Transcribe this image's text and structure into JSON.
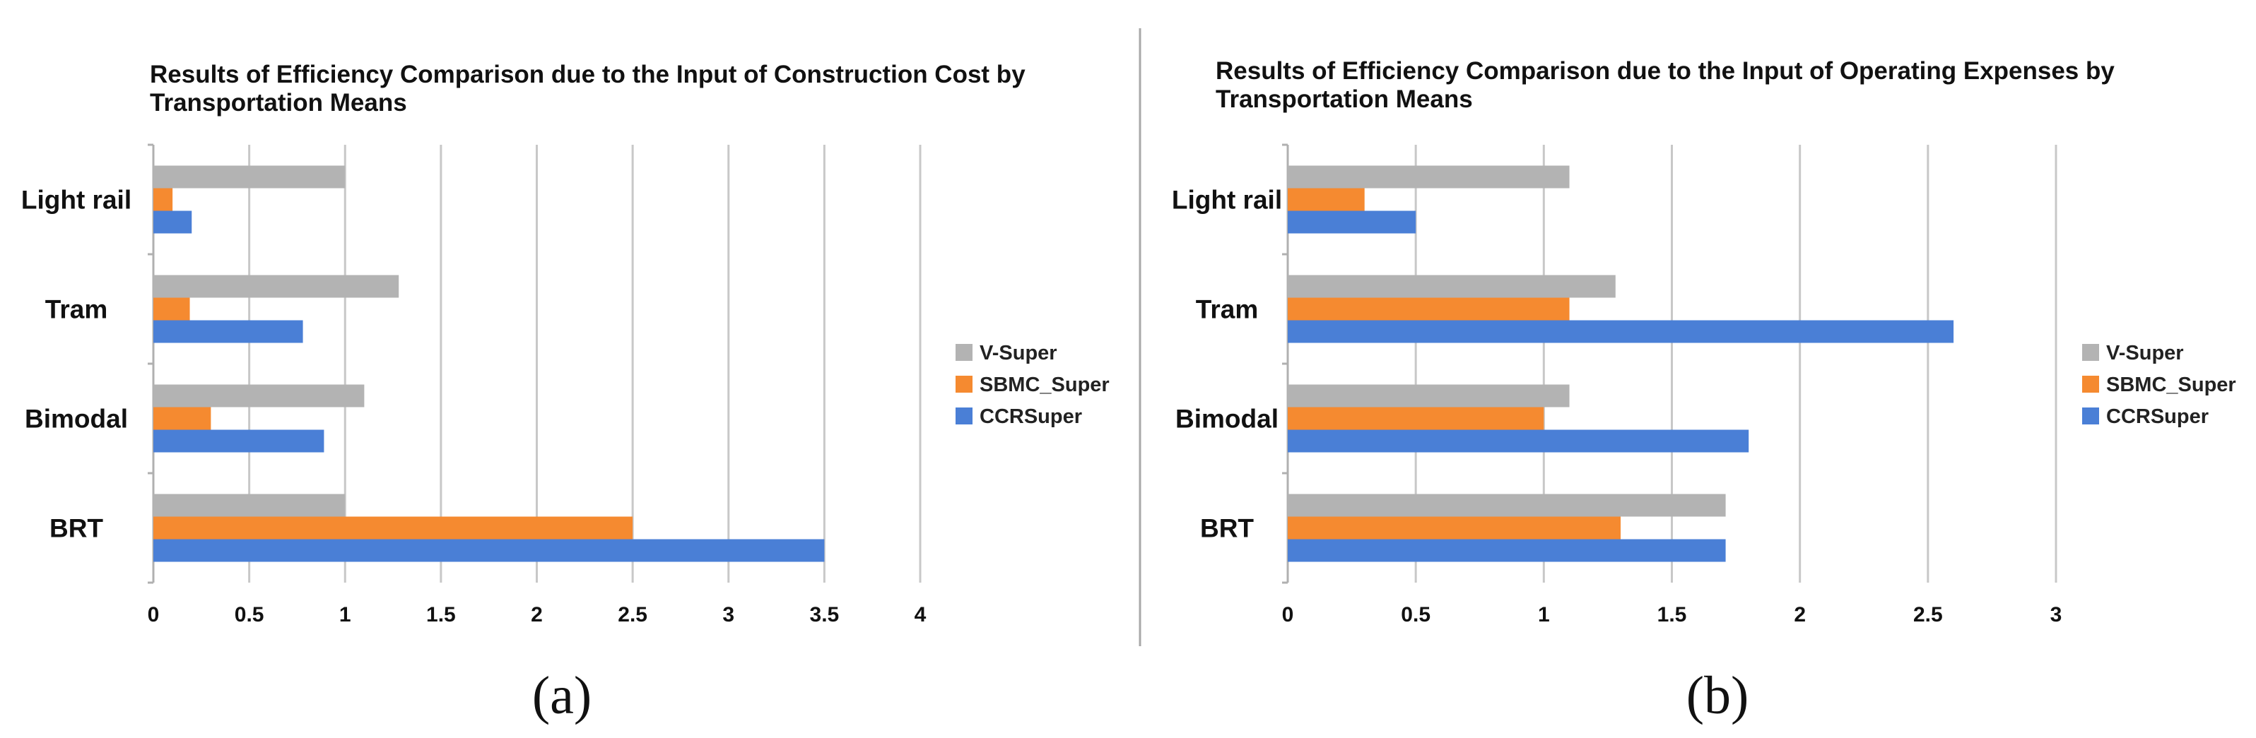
{
  "colors": {
    "V-Super": "#b3b3b3",
    "SBMC_Super": "#f58a30",
    "CCRSuper": "#4a7fd6",
    "grid": "#c8c8c8",
    "divider": "#a8a8a8"
  },
  "chart_data": [
    {
      "type": "bar",
      "orientation": "horizontal",
      "panel_label": "(a)",
      "title_lines": [
        "Results of Efficiency Comparison due to the Input of Construction Cost by",
        "Transportation Means"
      ],
      "categories": [
        "Light rail",
        "Tram",
        "Bimodal",
        "BRT"
      ],
      "series": [
        {
          "name": "V-Super",
          "values": [
            1.0,
            1.28,
            1.1,
            1.0
          ]
        },
        {
          "name": "SBMC_Super",
          "values": [
            0.1,
            0.19,
            0.3,
            2.5
          ]
        },
        {
          "name": "CCRSuper",
          "values": [
            0.2,
            0.78,
            0.89,
            3.5
          ]
        }
      ],
      "xlim": [
        0,
        4
      ],
      "xticks": [
        "0",
        "0.5",
        "1",
        "1.5",
        "2",
        "2.5",
        "3",
        "3.5",
        "4"
      ],
      "grid": true,
      "legend": [
        "V-Super",
        "SBMC_Super",
        "CCRSuper"
      ],
      "legend_position": "right"
    },
    {
      "type": "bar",
      "orientation": "horizontal",
      "panel_label": "(b)",
      "title_lines": [
        "Results of Efficiency Comparison due to the Input of Operating Expenses by",
        "Transportation Means"
      ],
      "categories": [
        "Light rail",
        "Tram",
        "Bimodal",
        "BRT"
      ],
      "series": [
        {
          "name": "V-Super",
          "values": [
            1.1,
            1.28,
            1.1,
            1.71
          ]
        },
        {
          "name": "SBMC_Super",
          "values": [
            0.3,
            1.1,
            1.0,
            1.3
          ]
        },
        {
          "name": "CCRSuper",
          "values": [
            0.5,
            2.6,
            1.8,
            1.71
          ]
        }
      ],
      "xlim": [
        0,
        3
      ],
      "xticks": [
        "0",
        "0.5",
        "1",
        "1.5",
        "2",
        "2.5",
        "3"
      ],
      "grid": true,
      "legend": [
        "V-Super",
        "SBMC_Super",
        "CCRSuper"
      ],
      "legend_position": "right"
    }
  ]
}
